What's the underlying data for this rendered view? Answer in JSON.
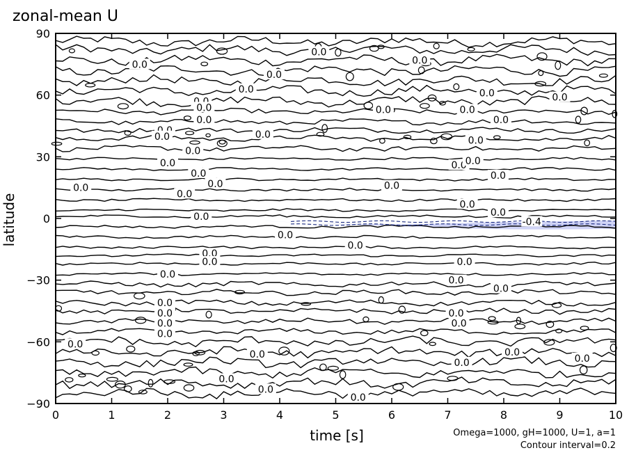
{
  "chart_data": {
    "type": "contour",
    "title": "zonal-mean U",
    "xlabel": "time [s]",
    "ylabel": "latitude",
    "xlim": [
      0,
      10
    ],
    "ylim": [
      -90,
      90
    ],
    "xticks": [
      0,
      1,
      2,
      3,
      4,
      5,
      6,
      7,
      8,
      9,
      10
    ],
    "yticks": [
      -90,
      -60,
      -30,
      0,
      30,
      60,
      90
    ],
    "xtick_labels": [
      "0",
      "1",
      "2",
      "3",
      "4",
      "5",
      "6",
      "7",
      "8",
      "9",
      "10"
    ],
    "ytick_labels": [
      "−90",
      "−60",
      "−30",
      "0",
      "30",
      "60",
      "90"
    ],
    "contour_interval": 0.2,
    "negative_shading": "#c8cdf5",
    "contour_levels_latitude": [
      86,
      82,
      77,
      72,
      67,
      62,
      57,
      52,
      47,
      43,
      39,
      34,
      29,
      24,
      19,
      14,
      9,
      4,
      1,
      -4,
      -9,
      -14,
      -18,
      -22,
      -27,
      -32,
      -36,
      -41,
      -45,
      -50,
      -55,
      -60,
      -65,
      -70,
      -75,
      -80,
      -85
    ],
    "contour_labels": [
      {
        "t": 4.7,
        "lat": 81,
        "text": "0.0"
      },
      {
        "t": 1.5,
        "lat": 75,
        "text": "0.0"
      },
      {
        "t": 6.5,
        "lat": 77,
        "text": "0.0"
      },
      {
        "t": 3.9,
        "lat": 70,
        "text": "0.0"
      },
      {
        "t": 3.4,
        "lat": 63,
        "text": "0.0"
      },
      {
        "t": 2.6,
        "lat": 57,
        "text": "0.0"
      },
      {
        "t": 2.65,
        "lat": 54,
        "text": "0.0"
      },
      {
        "t": 5.85,
        "lat": 53,
        "text": "0.0"
      },
      {
        "t": 9.0,
        "lat": 59,
        "text": "0.0"
      },
      {
        "t": 7.7,
        "lat": 61,
        "text": "0.0"
      },
      {
        "t": 7.35,
        "lat": 53,
        "text": "0.0"
      },
      {
        "t": 2.65,
        "lat": 48,
        "text": "0.0"
      },
      {
        "t": 7.95,
        "lat": 48,
        "text": "0.0"
      },
      {
        "t": 1.95,
        "lat": 43,
        "text": "0.0"
      },
      {
        "t": 1.9,
        "lat": 40,
        "text": "0.0"
      },
      {
        "t": 3.7,
        "lat": 41,
        "text": "0.0"
      },
      {
        "t": 7.5,
        "lat": 38,
        "text": "0.0"
      },
      {
        "t": 2.45,
        "lat": 33,
        "text": "0.0"
      },
      {
        "t": 2.0,
        "lat": 27,
        "text": "0.0"
      },
      {
        "t": 7.2,
        "lat": 26,
        "text": "0.0"
      },
      {
        "t": 7.45,
        "lat": 28,
        "text": "0.0"
      },
      {
        "t": 2.55,
        "lat": 22,
        "text": "0.0"
      },
      {
        "t": 7.9,
        "lat": 21,
        "text": "0.0"
      },
      {
        "t": 0.45,
        "lat": 15,
        "text": "0.0"
      },
      {
        "t": 2.3,
        "lat": 12,
        "text": "0.0"
      },
      {
        "t": 2.85,
        "lat": 17,
        "text": "0.0"
      },
      {
        "t": 6.0,
        "lat": 16,
        "text": "0.0"
      },
      {
        "t": 7.35,
        "lat": 7,
        "text": "0.0"
      },
      {
        "t": 7.9,
        "lat": 3,
        "text": "0.0"
      },
      {
        "t": 2.6,
        "lat": 1,
        "text": "0.0"
      },
      {
        "t": 4.1,
        "lat": -8,
        "text": "0.0"
      },
      {
        "t": 5.35,
        "lat": -13,
        "text": "0.0"
      },
      {
        "t": 2.75,
        "lat": -17,
        "text": "0.0"
      },
      {
        "t": 2.75,
        "lat": -21,
        "text": "0.0"
      },
      {
        "t": 7.3,
        "lat": -21,
        "text": "0.0"
      },
      {
        "t": 2.0,
        "lat": -27,
        "text": "0.0"
      },
      {
        "t": 7.15,
        "lat": -30,
        "text": "0.0"
      },
      {
        "t": 7.95,
        "lat": -34,
        "text": "0.0"
      },
      {
        "t": 1.95,
        "lat": -41,
        "text": "0.0"
      },
      {
        "t": 1.95,
        "lat": -46,
        "text": "0.0"
      },
      {
        "t": 7.15,
        "lat": -46,
        "text": "0.0"
      },
      {
        "t": 1.95,
        "lat": -51,
        "text": "0.0"
      },
      {
        "t": 7.2,
        "lat": -51,
        "text": "0.0"
      },
      {
        "t": 1.95,
        "lat": -56,
        "text": "0.0"
      },
      {
        "t": 0.35,
        "lat": -61,
        "text": "0.0"
      },
      {
        "t": 3.6,
        "lat": -66,
        "text": "0.0"
      },
      {
        "t": 9.4,
        "lat": -68,
        "text": "0.0"
      },
      {
        "t": 8.15,
        "lat": -65,
        "text": "0.0"
      },
      {
        "t": 7.25,
        "lat": -70,
        "text": "0.0"
      },
      {
        "t": 3.05,
        "lat": -78,
        "text": "0.0"
      },
      {
        "t": 3.75,
        "lat": -83,
        "text": "0.0"
      },
      {
        "t": 5.4,
        "lat": -87,
        "text": "0.0"
      },
      {
        "t": 9.15,
        "lat": -91,
        "text": "0.0"
      },
      {
        "t": 6.9,
        "lat": -99,
        "text": "0.0"
      },
      {
        "t": 8.5,
        "lat": -1.5,
        "text": "-0.4"
      }
    ],
    "annotations": [
      "Omega=1000, gH=1000, U=1, a=1",
      "Contour interval=0.2"
    ]
  }
}
